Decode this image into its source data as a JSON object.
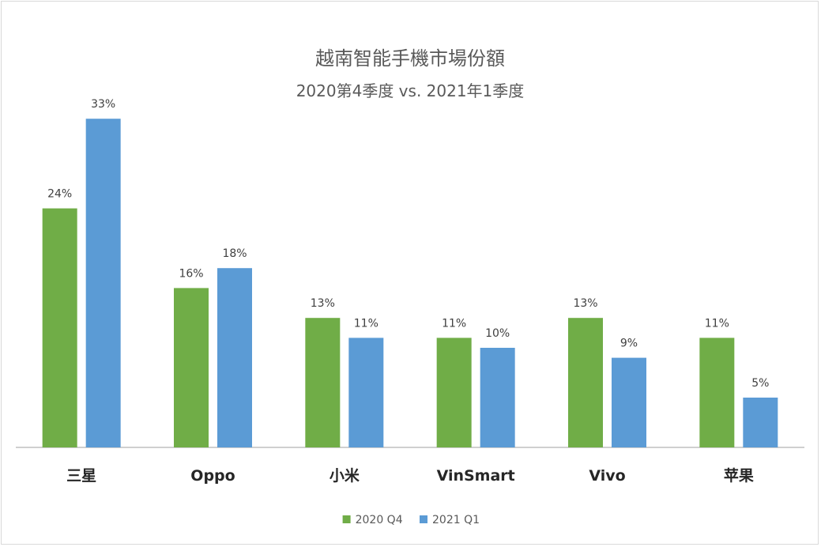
{
  "chart_data": {
    "type": "bar",
    "title": "越南智能手機市場份額",
    "subtitle": "2020第4季度 vs. 2021年1季度",
    "categories": [
      "三星",
      "Oppo",
      "小米",
      "VinSmart",
      "Vivo",
      "苹果"
    ],
    "series": [
      {
        "name": "2020 Q4",
        "color": "#70ad47",
        "values": [
          24,
          16,
          13,
          11,
          13,
          11
        ]
      },
      {
        "name": "2021 Q1",
        "color": "#5b9bd5",
        "values": [
          33,
          18,
          11,
          10,
          9,
          5
        ]
      }
    ],
    "value_suffix": "%",
    "ylim": [
      0,
      35
    ],
    "grid": false,
    "legend": "bottom"
  }
}
